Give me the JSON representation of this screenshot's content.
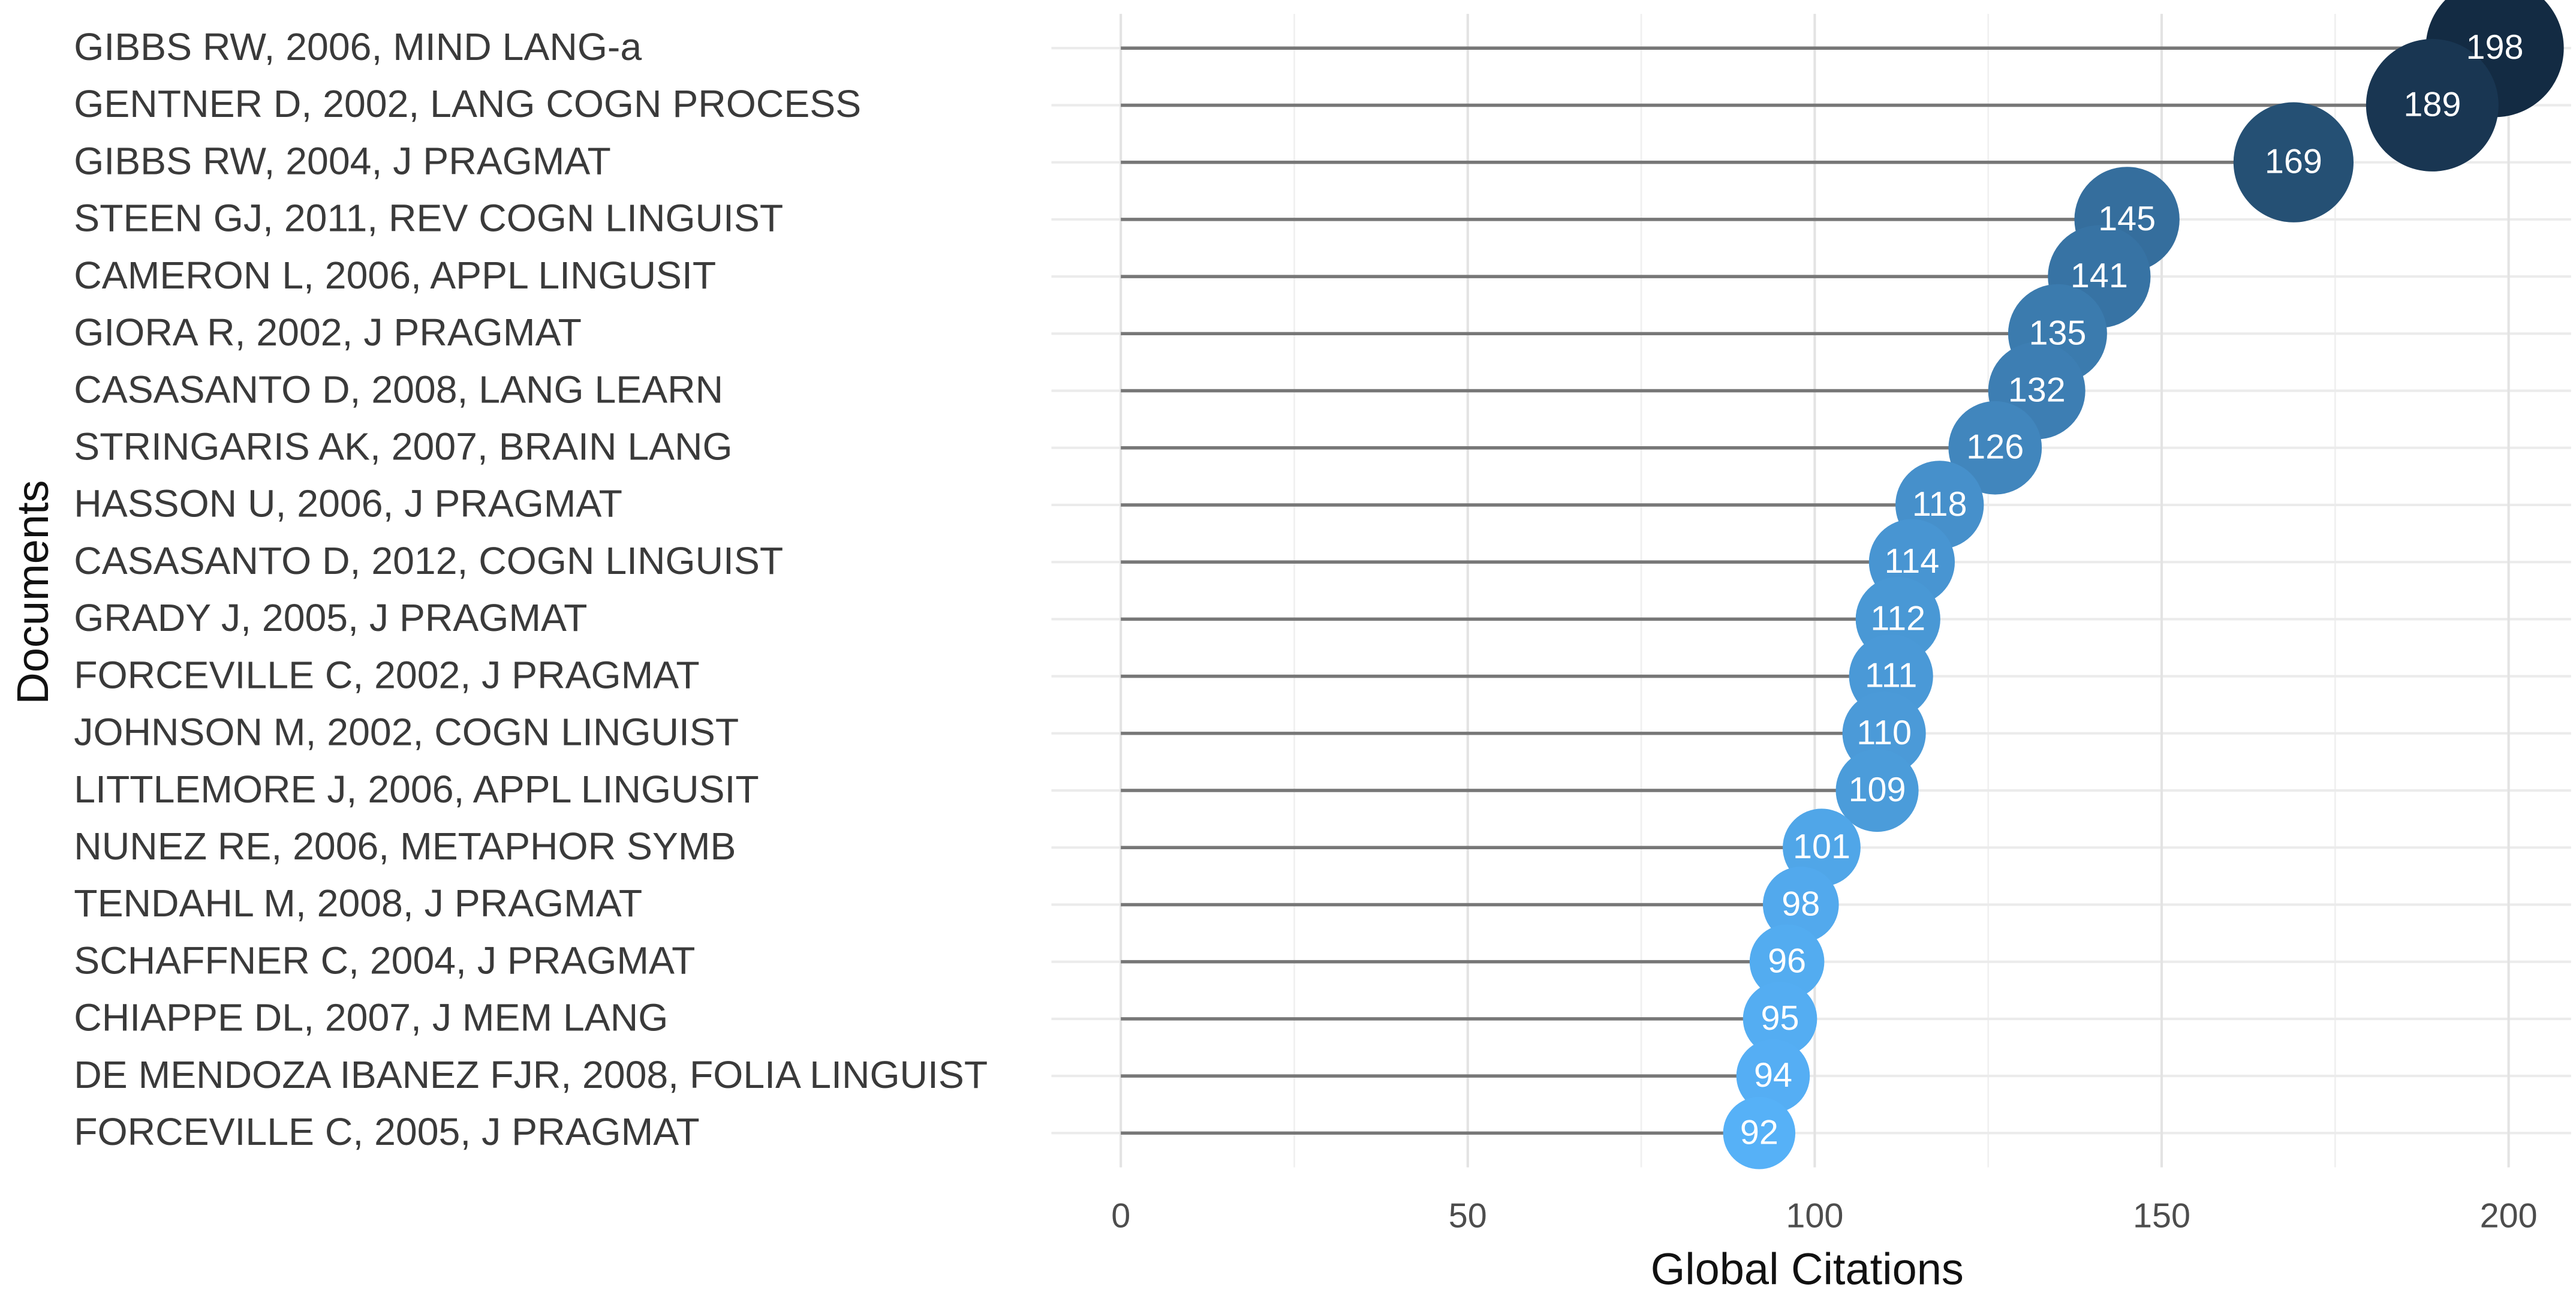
{
  "chart_data": {
    "type": "lollipop",
    "x_label": "Global Citations",
    "y_label": "Documents",
    "categories": [
      "GIBBS RW, 2006, MIND LANG-a",
      "GENTNER D, 2002, LANG COGN PROCESS",
      "GIBBS RW, 2004, J PRAGMAT",
      "STEEN GJ, 2011, REV COGN LINGUIST",
      "CAMERON L, 2006, APPL LINGUSIT",
      "GIORA R, 2002, J PRAGMAT",
      "CASASANTO D, 2008, LANG LEARN",
      "STRINGARIS AK, 2007, BRAIN LANG",
      "HASSON U, 2006, J PRAGMAT",
      "CASASANTO D, 2012, COGN LINGUIST",
      "GRADY J, 2005, J PRAGMAT",
      "FORCEVILLE C, 2002, J PRAGMAT",
      "JOHNSON M, 2002, COGN LINGUIST",
      "LITTLEMORE J, 2006, APPL LINGUSIT",
      "NUNEZ RE, 2006, METAPHOR SYMB",
      "TENDAHL M, 2008, J PRAGMAT",
      "SCHAFFNER C, 2004, J PRAGMAT",
      "CHIAPPE DL, 2007, J MEM LANG",
      "DE MENDOZA IBANEZ FJR, 2008, FOLIA LINGUIST",
      "FORCEVILLE C, 2005, J PRAGMAT"
    ],
    "values": [
      198,
      189,
      169,
      145,
      141,
      135,
      132,
      126,
      118,
      114,
      112,
      111,
      110,
      109,
      101,
      98,
      96,
      95,
      94,
      92
    ],
    "xlim": [
      -10,
      209
    ],
    "xticks": [
      0,
      50,
      100,
      150,
      200
    ],
    "grid": true,
    "color_low": "#56B1F7",
    "color_high": "#132B43",
    "line_color": "#777777"
  }
}
